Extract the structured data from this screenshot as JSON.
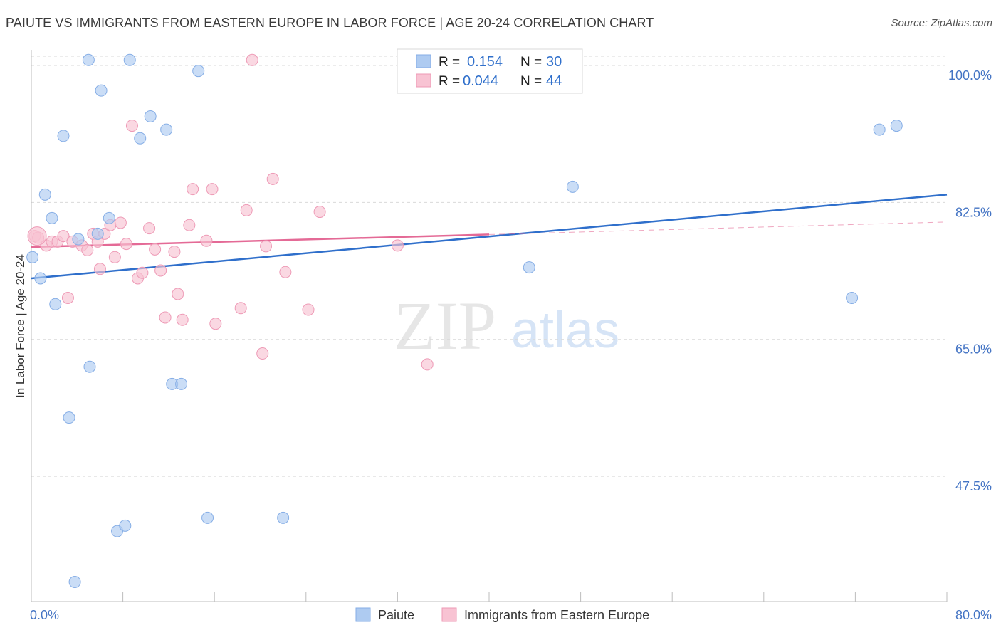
{
  "title": "PAIUTE VS IMMIGRANTS FROM EASTERN EUROPE IN LABOR FORCE | AGE 20-24 CORRELATION CHART",
  "source": "Source: ZipAtlas.com",
  "colors": {
    "paiute_fill": "#aecbf1",
    "paiute_stroke": "#86aee6",
    "paiute_line": "#2f6fcb",
    "immig_fill": "#f8c3d3",
    "immig_stroke": "#ee9ab6",
    "immig_line": "#e46a96",
    "axis_label": "#4474c4"
  },
  "legend": {
    "row1": {
      "r_label": "R =",
      "r_value": "0.154",
      "n_label": "N =",
      "n_value": "30"
    },
    "row2": {
      "r_label": "R =",
      "r_value": "0.044",
      "n_label": "N =",
      "n_value": "44"
    }
  },
  "watermark": {
    "zip": "ZIP",
    "atlas": "atlas"
  },
  "chart_data": {
    "type": "scatter",
    "title": "PAIUTE VS IMMIGRANTS FROM EASTERN EUROPE IN LABOR FORCE | AGE 20-24 CORRELATION CHART",
    "xlabel": "",
    "ylabel": "In Labor Force | Age 20-24",
    "xlim": [
      0,
      80
    ],
    "ylim": [
      31.5,
      102
    ],
    "x_tick_labels": [
      "0.0%",
      "80.0%"
    ],
    "y_ticks": [
      47.5,
      65.0,
      82.5,
      100.0
    ],
    "y_tick_labels": [
      "47.5%",
      "65.0%",
      "82.5%",
      "100.0%"
    ],
    "grid": true,
    "legend_position": "bottom",
    "series": [
      {
        "name": "Paiute",
        "r": 0.154,
        "n": 30,
        "trend": {
          "x": [
            0,
            80
          ],
          "y": [
            72.8,
            83.5
          ]
        },
        "points": [
          {
            "x": 0.1,
            "y": 75.5
          },
          {
            "x": 0.8,
            "y": 72.8
          },
          {
            "x": 1.2,
            "y": 83.5
          },
          {
            "x": 1.8,
            "y": 80.5
          },
          {
            "x": 2.1,
            "y": 69.5
          },
          {
            "x": 2.8,
            "y": 91.0
          },
          {
            "x": 3.3,
            "y": 55.0
          },
          {
            "x": 3.8,
            "y": 34.0
          },
          {
            "x": 4.1,
            "y": 77.8
          },
          {
            "x": 5.1,
            "y": 61.5
          },
          {
            "x": 5.8,
            "y": 78.5
          },
          {
            "x": 6.1,
            "y": 96.8
          },
          {
            "x": 6.8,
            "y": 80.5
          },
          {
            "x": 7.5,
            "y": 40.5
          },
          {
            "x": 8.2,
            "y": 41.2
          },
          {
            "x": 9.5,
            "y": 90.7
          },
          {
            "x": 10.4,
            "y": 93.5
          },
          {
            "x": 11.8,
            "y": 91.8
          },
          {
            "x": 12.3,
            "y": 59.3
          },
          {
            "x": 13.1,
            "y": 59.3
          },
          {
            "x": 14.6,
            "y": 99.3
          },
          {
            "x": 15.4,
            "y": 42.2
          },
          {
            "x": 22.0,
            "y": 42.2
          },
          {
            "x": 43.5,
            "y": 74.2
          },
          {
            "x": 47.3,
            "y": 84.5
          },
          {
            "x": 71.7,
            "y": 70.3
          },
          {
            "x": 74.1,
            "y": 91.8
          },
          {
            "x": 75.6,
            "y": 92.3
          },
          {
            "x": 5.0,
            "y": 100.7
          },
          {
            "x": 8.6,
            "y": 100.7
          }
        ]
      },
      {
        "name": "Immigrants from Eastern Europe",
        "r": 0.044,
        "n": 44,
        "trend": {
          "x": [
            0,
            40
          ],
          "y": [
            76.8,
            78.4
          ]
        },
        "trend_dashed": {
          "x": [
            40,
            80
          ],
          "y": [
            78.4,
            80.0
          ]
        },
        "points": [
          {
            "x": 0.3,
            "y": 78.2
          },
          {
            "x": 0.6,
            "y": 78.0
          },
          {
            "x": 1.3,
            "y": 77.0
          },
          {
            "x": 1.8,
            "y": 77.5
          },
          {
            "x": 2.3,
            "y": 77.5
          },
          {
            "x": 2.8,
            "y": 78.2
          },
          {
            "x": 3.2,
            "y": 70.3
          },
          {
            "x": 3.6,
            "y": 77.5
          },
          {
            "x": 4.4,
            "y": 77.0
          },
          {
            "x": 4.9,
            "y": 76.4
          },
          {
            "x": 5.4,
            "y": 78.5
          },
          {
            "x": 5.8,
            "y": 77.5
          },
          {
            "x": 6.0,
            "y": 74.0
          },
          {
            "x": 6.4,
            "y": 78.5
          },
          {
            "x": 6.9,
            "y": 79.6
          },
          {
            "x": 7.3,
            "y": 75.5
          },
          {
            "x": 7.8,
            "y": 79.9
          },
          {
            "x": 8.3,
            "y": 77.2
          },
          {
            "x": 8.8,
            "y": 92.3
          },
          {
            "x": 9.3,
            "y": 72.8
          },
          {
            "x": 9.7,
            "y": 73.5
          },
          {
            "x": 10.3,
            "y": 79.2
          },
          {
            "x": 10.8,
            "y": 76.5
          },
          {
            "x": 11.3,
            "y": 73.8
          },
          {
            "x": 11.7,
            "y": 67.8
          },
          {
            "x": 12.5,
            "y": 76.2
          },
          {
            "x": 12.8,
            "y": 70.8
          },
          {
            "x": 13.2,
            "y": 67.5
          },
          {
            "x": 13.8,
            "y": 79.6
          },
          {
            "x": 14.1,
            "y": 84.2
          },
          {
            "x": 15.3,
            "y": 77.6
          },
          {
            "x": 15.8,
            "y": 84.2
          },
          {
            "x": 16.1,
            "y": 67.0
          },
          {
            "x": 18.3,
            "y": 69.0
          },
          {
            "x": 18.8,
            "y": 81.5
          },
          {
            "x": 19.3,
            "y": 100.7
          },
          {
            "x": 20.2,
            "y": 63.2
          },
          {
            "x": 20.5,
            "y": 76.9
          },
          {
            "x": 21.1,
            "y": 85.5
          },
          {
            "x": 22.2,
            "y": 73.6
          },
          {
            "x": 24.2,
            "y": 68.8
          },
          {
            "x": 25.2,
            "y": 81.3
          },
          {
            "x": 32.0,
            "y": 77.0
          },
          {
            "x": 34.6,
            "y": 61.8
          }
        ]
      }
    ]
  }
}
